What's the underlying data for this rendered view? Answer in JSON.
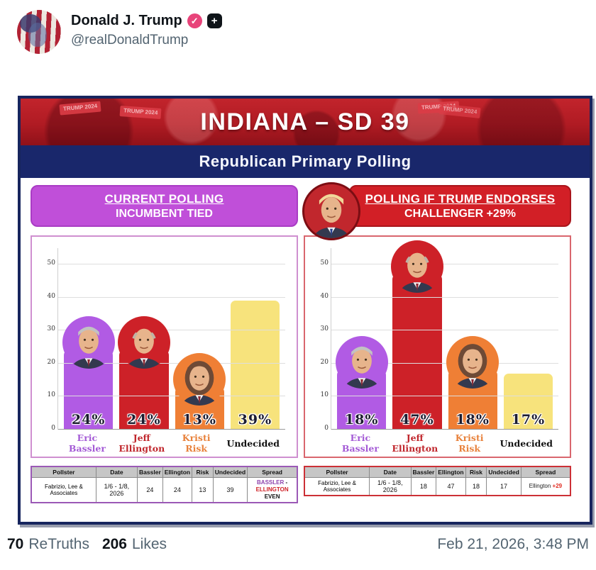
{
  "post": {
    "author": "Donald J. Trump",
    "handle": "@realDonaldTrump",
    "badges": {
      "verified": "verified-check",
      "plus": "+"
    },
    "retruths_count": "70",
    "retruths_label": "ReTruths",
    "likes_count": "206",
    "likes_label": "Likes",
    "timestamp": "Feb 21, 2026, 3:48 PM"
  },
  "infographic": {
    "title": "INDIANA – SD 39",
    "subtitle": "Republican Primary Polling",
    "banner_signs": [
      "TRUMP 2024",
      "TRUMP 2024",
      "TRUMP 2024",
      "TRUMP 2024"
    ],
    "colors": {
      "navy": "#19276b",
      "banner_red": "#b01b23",
      "purple": "#c04fd9",
      "red": "#d21f26",
      "orange": "#ee7d33",
      "yellow": "#f7e37c"
    }
  },
  "chart_data": [
    {
      "type": "bar",
      "title": "CURRENT POLLING",
      "subtitle": "INCUMBENT TIED",
      "categories": [
        "Eric Bassler",
        "Jeff Ellington",
        "Kristi Risk",
        "Undecided"
      ],
      "values": [
        24,
        24,
        13,
        39
      ],
      "bar_labels": [
        "24%",
        "24%",
        "13%",
        "39%"
      ],
      "bar_colors": [
        "#b15be4",
        "#cd2128",
        "#ef7f35",
        "#f7e37c"
      ],
      "name_colors": [
        "#a45bd6",
        "#c0272d",
        "#e8823c",
        "#111111"
      ],
      "name_lines": [
        [
          "Eric",
          "Bassler"
        ],
        [
          "Jeff",
          "Ellington"
        ],
        [
          "Kristi",
          "Risk"
        ],
        [
          "Undecided",
          ""
        ]
      ],
      "xlabel": "",
      "ylabel": "",
      "ylim": [
        0,
        55
      ],
      "yticks": [
        0,
        10,
        20,
        30,
        40,
        50
      ],
      "grid": true,
      "legend": false
    },
    {
      "type": "bar",
      "title": "POLLING IF TRUMP ENDORSES",
      "subtitle": "CHALLENGER +29%",
      "categories": [
        "Eric Bassler",
        "Jeff Ellington",
        "Kristi Risk",
        "Undecided"
      ],
      "values": [
        18,
        47,
        18,
        17
      ],
      "bar_labels": [
        "18%",
        "47%",
        "18%",
        "17%"
      ],
      "bar_colors": [
        "#b15be4",
        "#cd2128",
        "#ef7f35",
        "#f7e37c"
      ],
      "name_colors": [
        "#a45bd6",
        "#c0272d",
        "#e8823c",
        "#111111"
      ],
      "name_lines": [
        [
          "Eric",
          "Bassler"
        ],
        [
          "Jeff",
          "Ellington"
        ],
        [
          "Kristi",
          "Risk"
        ],
        [
          "Undecided",
          ""
        ]
      ],
      "xlabel": "",
      "ylabel": "",
      "ylim": [
        0,
        55
      ],
      "yticks": [
        0,
        10,
        20,
        30,
        40,
        50
      ],
      "grid": true,
      "legend": false
    }
  ],
  "tables": [
    {
      "headers": [
        "Pollster",
        "Date",
        "Bassler",
        "Ellington",
        "Risk",
        "Undecided",
        "Spread"
      ],
      "row": [
        "Fabrizio, Lee & Associates",
        "1/6 - 1/8, 2026",
        "24",
        "24",
        "13",
        "39"
      ],
      "spread": {
        "p1": "BASSLER",
        "sep": " - ",
        "p2": "ELLINGTON",
        "line2": "EVEN"
      }
    },
    {
      "headers": [
        "Pollster",
        "Date",
        "Bassler",
        "Ellington",
        "Risk",
        "Undecided",
        "Spread"
      ],
      "row": [
        "Fabrizio, Lee & Associates",
        "1/6 - 1/8, 2026",
        "18",
        "47",
        "18",
        "17"
      ],
      "spread": {
        "name": "Ellington ",
        "value": "+29"
      }
    }
  ]
}
